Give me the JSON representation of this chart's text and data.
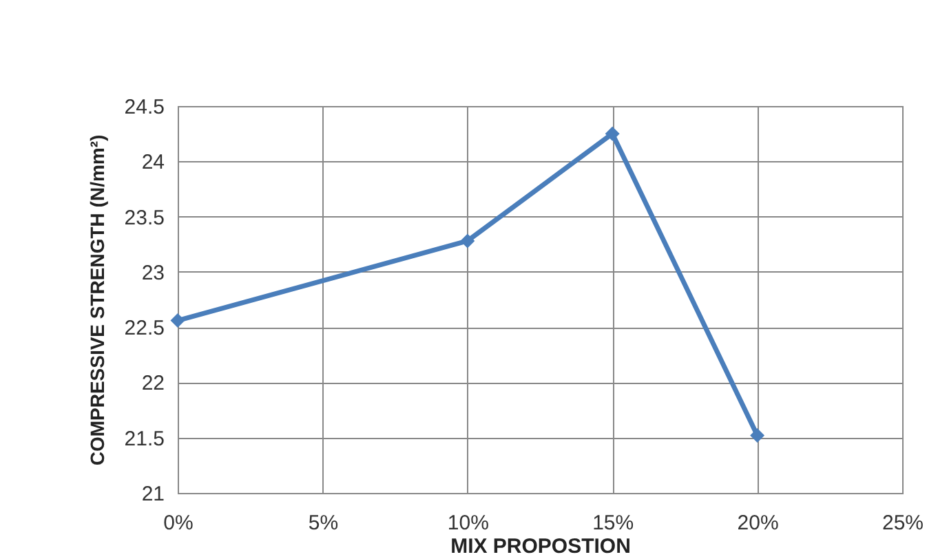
{
  "chart_data": {
    "type": "line",
    "xlabel": "MIX PROPOSTION",
    "ylabel": "COMPRESSIVE STRENGTH (N/mm²)",
    "x": [
      0,
      10,
      15,
      20
    ],
    "series": [
      {
        "color": "#4a7ebb",
        "values": [
          22.56,
          23.28,
          24.25,
          21.52
        ]
      }
    ],
    "xlim": [
      0,
      25
    ],
    "xticks": [
      {
        "value": 0,
        "label": "0%"
      },
      {
        "value": 5,
        "label": "5%"
      },
      {
        "value": 10,
        "label": "10%"
      },
      {
        "value": 15,
        "label": "15%"
      },
      {
        "value": 20,
        "label": "20%"
      },
      {
        "value": 25,
        "label": "25%"
      }
    ],
    "ylim": [
      21,
      24.5
    ],
    "yticks": [
      21,
      21.5,
      22,
      22.5,
      23,
      23.5,
      24,
      24.5
    ],
    "grid": true,
    "marker": "diamond",
    "line_style": "solid"
  }
}
